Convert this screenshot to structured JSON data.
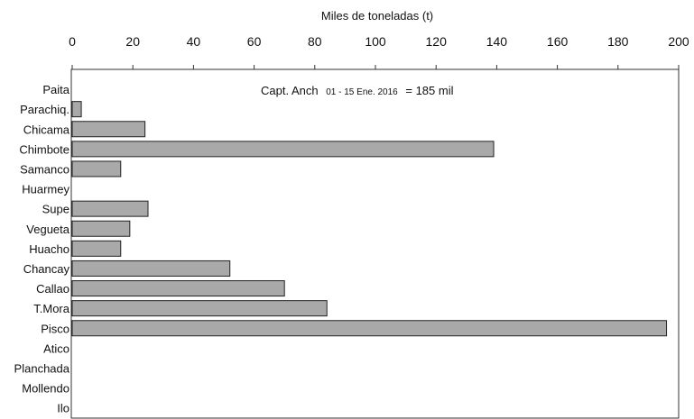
{
  "chart_data": {
    "type": "bar",
    "orientation": "horizontal",
    "xlabel": "Miles de toneladas (t)",
    "xlim": [
      0,
      200
    ],
    "xticks": [
      0,
      20,
      40,
      60,
      80,
      100,
      120,
      140,
      160,
      180,
      200
    ],
    "axis_position": "top",
    "grid": false,
    "categories": [
      "Paita",
      "Parachiq.",
      "Chicama",
      "Chimbote",
      "Samanco",
      "Huarmey",
      "Supe",
      "Vegueta",
      "Huacho",
      "Chancay",
      "Callao",
      "T.Mora",
      "Pisco",
      "Atico",
      "Planchada",
      "Mollendo",
      "Ilo"
    ],
    "values": [
      0,
      3,
      24,
      139,
      16,
      0,
      25,
      19,
      16,
      52,
      70,
      84,
      196,
      0,
      0,
      0,
      0
    ],
    "bar_color": "#a9a9a9",
    "annotation": {
      "prefix": "Capt. Anch",
      "dates": "01 - 15 Ene. 2016",
      "suffix": "= 185 mil"
    }
  }
}
